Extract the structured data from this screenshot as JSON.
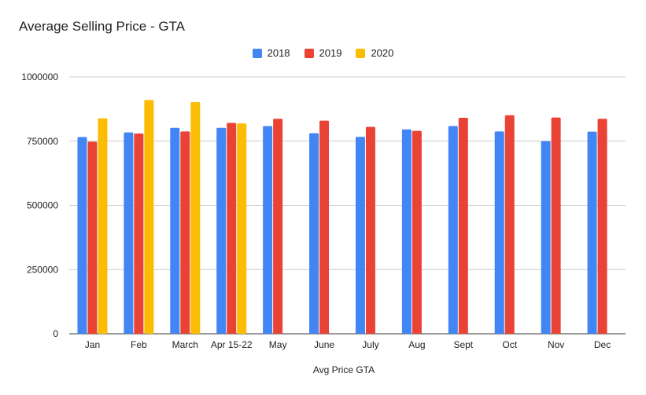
{
  "chart_data": {
    "type": "bar",
    "title": "Average Selling Price - GTA",
    "xlabel": "Avg Price GTA",
    "ylabel": "",
    "ylim": [
      0,
      1000000
    ],
    "yticks": [
      0,
      250000,
      500000,
      750000,
      1000000
    ],
    "grid": true,
    "legend_position": "top",
    "categories": [
      "Jan",
      "Feb",
      "March",
      "Apr 15-22",
      "May",
      "June",
      "July",
      "Aug",
      "Sept",
      "Oct",
      "Nov",
      "Dec"
    ],
    "series": [
      {
        "name": "2018",
        "color": "#4285f4",
        "values": [
          766000,
          784000,
          802000,
          802000,
          809000,
          781000,
          767000,
          796000,
          809000,
          788000,
          750000,
          787000
        ]
      },
      {
        "name": "2019",
        "color": "#ea4335",
        "values": [
          748000,
          780000,
          788000,
          821000,
          837000,
          830000,
          806000,
          790000,
          841000,
          851000,
          842000,
          837000
        ]
      },
      {
        "name": "2020",
        "color": "#fbbc04",
        "values": [
          839000,
          910000,
          902000,
          819000,
          null,
          null,
          null,
          null,
          null,
          null,
          null,
          null
        ]
      }
    ]
  }
}
